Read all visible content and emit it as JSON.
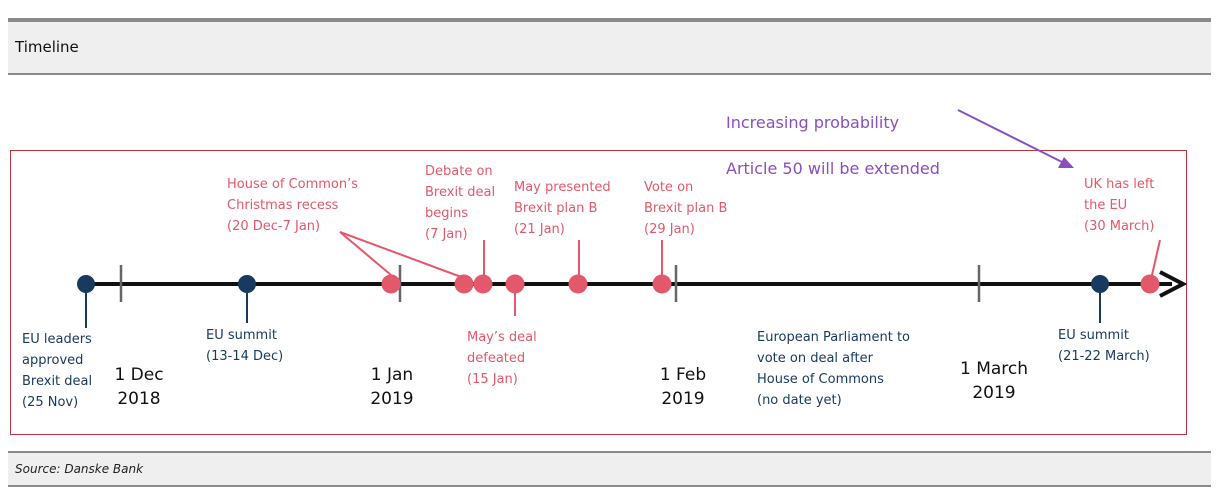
{
  "title": "Timeline",
  "source": "Source: Danske Bank",
  "note": {
    "line1": "Increasing probability",
    "line2": "Article 50 will be extended"
  },
  "dates": {
    "dec": "1 Dec\n2018",
    "jan": "1 Jan\n2019",
    "feb": "1 Feb\n2019",
    "mar": "1 March\n2019"
  },
  "events": {
    "eu_leaders": "EU leaders\napproved\nBrexit deal\n(25 Nov)",
    "eu_summit_dec": "EU summit\n(13-14 Dec)",
    "christmas_recess": "House of Common’s\nChristmas recess\n(20 Dec-7 Jan)",
    "debate": "Debate on\nBrexit deal\nbegins\n(7 Jan)",
    "deal_defeated": "May’s deal\ndefeated\n(15 Jan)",
    "plan_b": "May presented\nBrexit plan B\n(21 Jan)",
    "vote_plan_b": "Vote on\nBrexit plan B\n(29 Jan)",
    "ep_vote": "European Parliament to\nvote on deal after\nHouse of Commons\n(no date yet)",
    "eu_summit_mar": "EU summit\n(21-22 March)",
    "uk_left": "UK has left\nthe EU\n(30 March)"
  },
  "colors": {
    "navy": "#173a5e",
    "pink": "#e4586b",
    "purple": "#8a4fbf",
    "frame": "#c0323f"
  }
}
